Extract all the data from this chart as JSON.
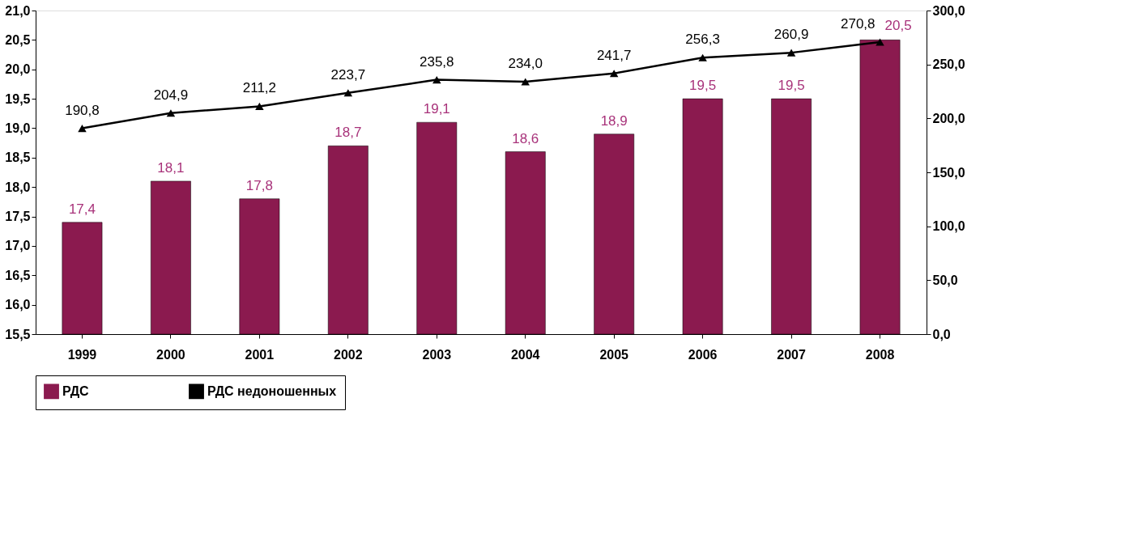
{
  "chart_data": {
    "type": "bar",
    "categories": [
      "1999",
      "2000",
      "2001",
      "2002",
      "2003",
      "2004",
      "2005",
      "2006",
      "2007",
      "2008"
    ],
    "series": [
      {
        "name": "РДС",
        "color": "#8b1a4f",
        "values": [
          17.4,
          18.1,
          17.8,
          18.7,
          19.1,
          18.6,
          18.9,
          19.5,
          19.5,
          20.5
        ],
        "value_labels": [
          "17,4",
          "18,1",
          "17,8",
          "18,7",
          "19,1",
          "18,6",
          "18,9",
          "19,5",
          "19,5",
          "20,5"
        ]
      },
      {
        "name": "РДС недоношенных",
        "type": "line",
        "axis": "y2",
        "color": "#000000",
        "values": [
          190.8,
          204.9,
          211.2,
          223.7,
          235.8,
          234.0,
          241.7,
          256.3,
          260.9,
          270.8
        ],
        "value_labels": [
          "190,8",
          "204,9",
          "211,2",
          "223,7",
          "235,8",
          "234,0",
          "241,7",
          "256,3",
          "260,9",
          "270,8"
        ]
      }
    ],
    "ylim": [
      15.5,
      21.0
    ],
    "yticks": [
      {
        "value": 15.5,
        "label": "15,5"
      },
      {
        "value": 16.0,
        "label": "16,0"
      },
      {
        "value": 16.5,
        "label": "16,5"
      },
      {
        "value": 17.0,
        "label": "17,0"
      },
      {
        "value": 17.5,
        "label": "17,5"
      },
      {
        "value": 18.0,
        "label": "18,0"
      },
      {
        "value": 18.5,
        "label": "18,5"
      },
      {
        "value": 19.0,
        "label": "19,0"
      },
      {
        "value": 19.5,
        "label": "19,5"
      },
      {
        "value": 20.0,
        "label": "20,0"
      },
      {
        "value": 20.5,
        "label": "20,5"
      },
      {
        "value": 21.0,
        "label": "21,0"
      }
    ],
    "y2lim": [
      0,
      300
    ],
    "y2ticks": [
      {
        "value": 0,
        "label": "0,0"
      },
      {
        "value": 50,
        "label": "50,0"
      },
      {
        "value": 100,
        "label": "100,0"
      },
      {
        "value": 150,
        "label": "150,0"
      },
      {
        "value": 200,
        "label": "200,0"
      },
      {
        "value": 250,
        "label": "250,0"
      },
      {
        "value": 300,
        "label": "300,0"
      }
    ],
    "grid": false,
    "legend": "bottom",
    "marker": "triangle",
    "line_style": "solid"
  }
}
